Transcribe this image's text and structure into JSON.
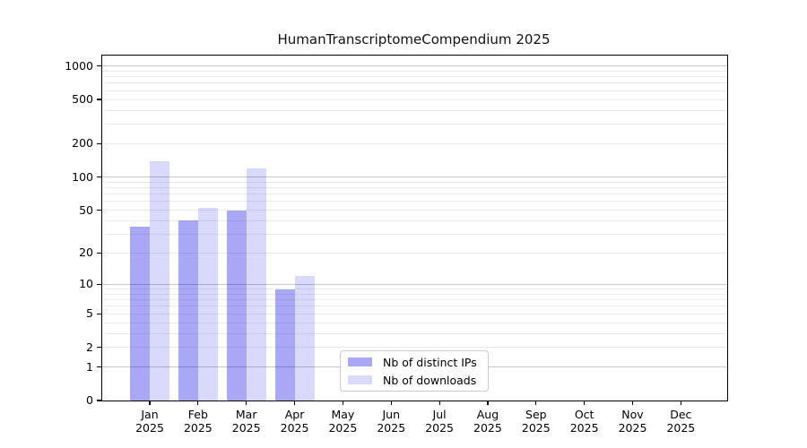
{
  "chart_data": {
    "type": "bar",
    "title": "HumanTranscriptomeCompendium 2025",
    "categories": [
      "Jan",
      "Feb",
      "Mar",
      "Apr",
      "May",
      "Jun",
      "Jul",
      "Aug",
      "Sep",
      "Oct",
      "Nov",
      "Dec"
    ],
    "year_label": "2025",
    "series": [
      {
        "name": "Nb of distinct IPs",
        "color": "rgba(0,0,230,0.34)",
        "values": [
          35,
          40,
          50,
          9,
          0,
          0,
          0,
          0,
          0,
          0,
          0,
          0
        ]
      },
      {
        "name": "Nb of downloads",
        "color": "rgba(0,0,230,0.15)",
        "values": [
          140,
          52,
          120,
          12,
          0,
          0,
          0,
          0,
          0,
          0,
          0,
          0
        ]
      }
    ],
    "xlabel": "",
    "ylabel": "",
    "yscale": "log1p",
    "ylim": [
      0,
      1240
    ],
    "yticks": [
      0,
      1,
      2,
      5,
      10,
      20,
      50,
      100,
      200,
      500,
      1000
    ],
    "major_gridlines": [
      1,
      10,
      100,
      1000
    ],
    "minor_gridlines": [
      2,
      3,
      4,
      5,
      6,
      7,
      8,
      9,
      20,
      30,
      40,
      50,
      60,
      70,
      80,
      90,
      200,
      300,
      400,
      500,
      600,
      700,
      800,
      900
    ],
    "grid": true,
    "legend_position": "lower-center-left inside plot",
    "colors": {
      "major_grid": "#c6c6c6",
      "minor_grid": "#ebebeb",
      "axis": "#000000",
      "legend_border": "#cccccc"
    }
  }
}
